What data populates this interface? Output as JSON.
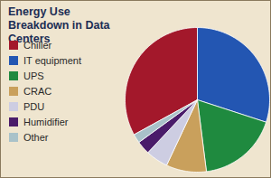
{
  "chart_data": {
    "type": "pie",
    "title": "Energy Use Breakdown in Data Centers",
    "categories": [
      "Chiller",
      "IT equipment",
      "UPS",
      "CRAC",
      "PDU",
      "Humidifier",
      "Other"
    ],
    "values": [
      33,
      30,
      18,
      9,
      5,
      3,
      2
    ],
    "colors": [
      "#a3182b",
      "#2356b2",
      "#1f8a3f",
      "#c9a05c",
      "#cdcde2",
      "#4a1c6a",
      "#a9c2c9"
    ],
    "legend": "left"
  }
}
